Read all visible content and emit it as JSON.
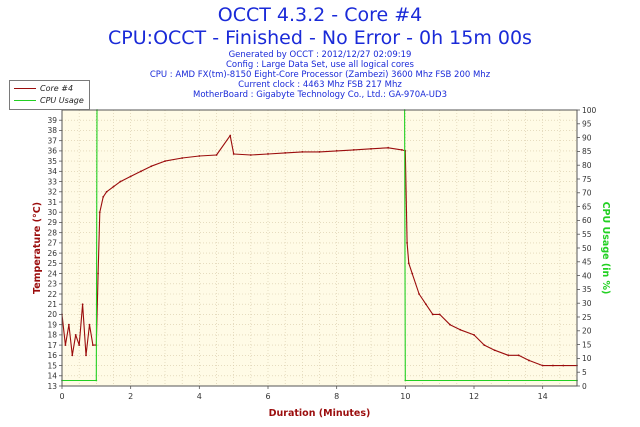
{
  "title": "OCCT 4.3.2 - Core #4",
  "subtitle": "CPU:OCCT - Finished - No Error - 0h 15m 00s",
  "info_lines": [
    "Generated by OCCT : 2012/12/27 02:09:19",
    "Config : Large Data Set, use all logical cores",
    "CPU : AMD FX(tm)-8150 Eight-Core Processor (Zambezi) 3600 Mhz FSB 200 Mhz",
    "Current clock : 4463 Mhz FSB 217 Mhz",
    "MotherBoard : Gigabyte Technology Co., Ltd.: GA-970A-UD3"
  ],
  "chart_data": {
    "type": "line",
    "xlabel": "Duration (Minutes)",
    "ylabel": "Temperature (°C)",
    "y2label": "CPU Usage (in %)",
    "xlim": [
      0,
      15
    ],
    "ylim": [
      13,
      40
    ],
    "y2lim": [
      0,
      100
    ],
    "xticks": [
      0,
      2,
      4,
      6,
      8,
      10,
      12,
      14
    ],
    "yticks": [
      13,
      14,
      15,
      16,
      17,
      18,
      19,
      20,
      21,
      22,
      23,
      24,
      25,
      26,
      27,
      28,
      29,
      30,
      31,
      32,
      33,
      34,
      35,
      36,
      37,
      38,
      39
    ],
    "y2ticks": [
      0,
      5,
      10,
      15,
      20,
      25,
      30,
      35,
      40,
      45,
      50,
      55,
      60,
      65,
      70,
      75,
      80,
      85,
      90,
      95,
      100
    ],
    "grid": true,
    "legend": "top-left",
    "colors": {
      "core": "#9b0d0d",
      "usage": "#22d022",
      "background": "#fffbe6",
      "grid": "#d6c9a8"
    },
    "series": [
      {
        "name": "Core #4",
        "axis": "left",
        "x": [
          0,
          0.1,
          0.2,
          0.3,
          0.4,
          0.5,
          0.6,
          0.7,
          0.8,
          0.9,
          1.0,
          1.05,
          1.1,
          1.2,
          1.3,
          1.5,
          1.7,
          2.0,
          2.3,
          2.6,
          3.0,
          3.5,
          4.0,
          4.5,
          4.9,
          5.0,
          5.5,
          6.0,
          6.5,
          7.0,
          7.5,
          8.0,
          8.5,
          9.0,
          9.5,
          9.9,
          10.0,
          10.05,
          10.1,
          10.2,
          10.4,
          10.6,
          10.8,
          11.0,
          11.3,
          11.6,
          12.0,
          12.3,
          12.6,
          13.0,
          13.3,
          13.6,
          14.0,
          14.3,
          14.6,
          15.0
        ],
        "values": [
          20,
          17,
          19,
          16,
          18,
          17,
          21,
          16,
          19,
          17,
          17,
          24,
          30,
          31.5,
          32,
          32.5,
          33,
          33.5,
          34,
          34.5,
          35,
          35.3,
          35.5,
          35.6,
          37.5,
          35.7,
          35.6,
          35.7,
          35.8,
          35.9,
          35.9,
          36,
          36.1,
          36.2,
          36.3,
          36.1,
          36,
          27,
          25,
          24,
          22,
          21,
          20,
          20,
          19,
          18.5,
          18,
          17,
          16.5,
          16,
          16,
          15.5,
          15,
          15,
          15,
          15
        ]
      },
      {
        "name": "CPU Usage",
        "axis": "right",
        "x": [
          0,
          1.0,
          1.02,
          9.98,
          10.0,
          15.0
        ],
        "values": [
          2,
          2,
          100,
          100,
          2,
          2
        ]
      }
    ]
  }
}
